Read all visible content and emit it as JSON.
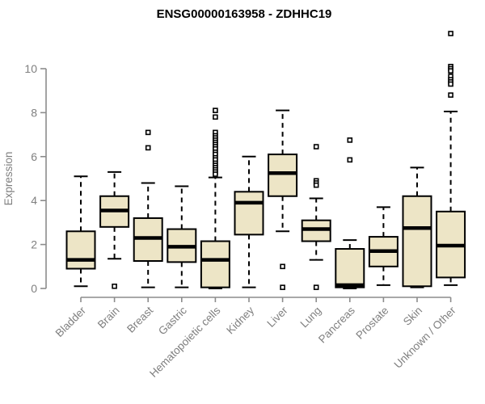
{
  "chart_data": {
    "type": "boxplot",
    "title": "ENSG00000163958 - ZDHHC19",
    "ylabel": "Expression",
    "xlabel": "",
    "ylim": [
      0,
      10
    ],
    "yticks": [
      0,
      2,
      4,
      6,
      8,
      10
    ],
    "grid": false,
    "legend": "none",
    "colors": {
      "box_fill": "#ede5c6",
      "box_stroke": "#000000",
      "median": "#000000",
      "whisker": "#000000",
      "outlier_fill": "#ffffff",
      "outlier_stroke": "#000000",
      "axis": "#8c8c8c",
      "tick_label": "#7f7f7f",
      "title": "#000000"
    },
    "categories": [
      "Bladder",
      "Brain",
      "Breast",
      "Gastric",
      "Hematopoietic cells",
      "Kidney",
      "Liver",
      "Lung",
      "Pancreas",
      "Prostate",
      "Skin",
      "Unknown / Other"
    ],
    "series": [
      {
        "category": "Bladder",
        "whisker_low": 0.1,
        "q1": 0.9,
        "median": 1.3,
        "q3": 2.6,
        "whisker_high": 5.1,
        "outliers": []
      },
      {
        "category": "Brain",
        "whisker_low": 1.35,
        "q1": 2.8,
        "median": 3.55,
        "q3": 4.2,
        "whisker_high": 5.3,
        "outliers": [
          0.1
        ]
      },
      {
        "category": "Breast",
        "whisker_low": 0.05,
        "q1": 1.25,
        "median": 2.3,
        "q3": 3.2,
        "whisker_high": 4.8,
        "outliers": [
          7.1,
          6.4
        ]
      },
      {
        "category": "Gastric",
        "whisker_low": 0.05,
        "q1": 1.2,
        "median": 1.9,
        "q3": 2.7,
        "whisker_high": 4.65,
        "outliers": []
      },
      {
        "category": "Hematopoietic cells",
        "whisker_low": 0.0,
        "q1": 0.05,
        "median": 1.3,
        "q3": 2.15,
        "whisker_high": 5.05,
        "outliers": [
          8.1,
          7.8,
          7.1,
          6.95,
          6.85,
          6.75,
          6.65,
          6.55,
          6.45,
          6.35,
          6.2,
          6.1,
          5.95,
          5.85,
          5.7,
          5.6,
          5.5,
          5.4,
          5.3,
          5.2
        ]
      },
      {
        "category": "Kidney",
        "whisker_low": 0.05,
        "q1": 2.45,
        "median": 3.9,
        "q3": 4.4,
        "whisker_high": 6.0,
        "outliers": []
      },
      {
        "category": "Liver",
        "whisker_low": 2.6,
        "q1": 4.2,
        "median": 5.25,
        "q3": 6.1,
        "whisker_high": 8.1,
        "outliers": [
          1.0,
          0.05
        ]
      },
      {
        "category": "Lung",
        "whisker_low": 1.3,
        "q1": 2.15,
        "median": 2.7,
        "q3": 3.1,
        "whisker_high": 4.1,
        "outliers": [
          6.45,
          4.9,
          4.8,
          4.7,
          0.05
        ]
      },
      {
        "category": "Pancreas",
        "whisker_low": 0.0,
        "q1": 0.05,
        "median": 0.15,
        "q3": 1.8,
        "whisker_high": 2.2,
        "outliers": [
          6.75,
          5.85
        ]
      },
      {
        "category": "Prostate",
        "whisker_low": 0.15,
        "q1": 1.0,
        "median": 1.7,
        "q3": 2.35,
        "whisker_high": 3.7,
        "outliers": []
      },
      {
        "category": "Skin",
        "whisker_low": 0.05,
        "q1": 0.1,
        "median": 2.75,
        "q3": 4.2,
        "whisker_high": 5.5,
        "outliers": []
      },
      {
        "category": "Unknown / Other",
        "whisker_low": 0.15,
        "q1": 0.5,
        "median": 1.95,
        "q3": 3.5,
        "whisker_high": 8.05,
        "outliers": [
          11.6,
          10.1,
          10.0,
          9.9,
          9.65,
          9.5,
          9.4,
          9.3,
          8.8
        ]
      }
    ]
  }
}
